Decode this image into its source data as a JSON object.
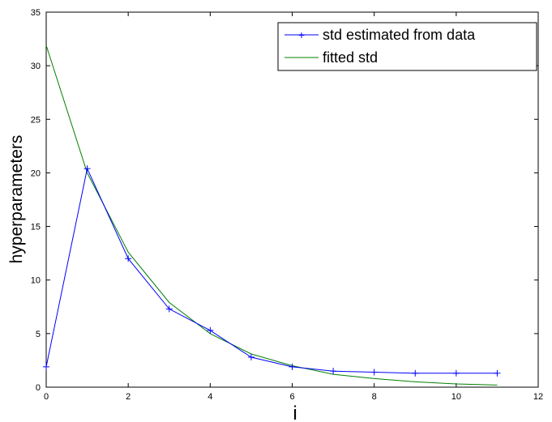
{
  "chart_data": {
    "type": "line",
    "xlabel": "i",
    "ylabel": "hyperparameters",
    "xlim": [
      0,
      12
    ],
    "ylim": [
      0,
      35
    ],
    "xticks": [
      0,
      2,
      4,
      6,
      8,
      10,
      12
    ],
    "yticks": [
      0,
      5,
      10,
      15,
      20,
      25,
      30,
      35
    ],
    "grid": false,
    "legend_position": "top-right",
    "series": [
      {
        "name": "std estimated from data",
        "color": "#0000ff",
        "marker": "+",
        "x": [
          0,
          1,
          2,
          3,
          4,
          5,
          6,
          7,
          8,
          9,
          10,
          11
        ],
        "y": [
          1.9,
          20.4,
          12.0,
          7.3,
          5.3,
          2.8,
          1.9,
          1.5,
          1.4,
          1.3,
          1.3,
          1.3
        ]
      },
      {
        "name": "fitted std",
        "color": "#008000",
        "marker": "none",
        "x": [
          0,
          1,
          2,
          3,
          4,
          5,
          6,
          7,
          8,
          9,
          10,
          11
        ],
        "y": [
          31.9,
          20.0,
          12.6,
          7.9,
          5.0,
          3.1,
          2.0,
          1.2,
          0.8,
          0.5,
          0.3,
          0.2
        ]
      }
    ]
  }
}
